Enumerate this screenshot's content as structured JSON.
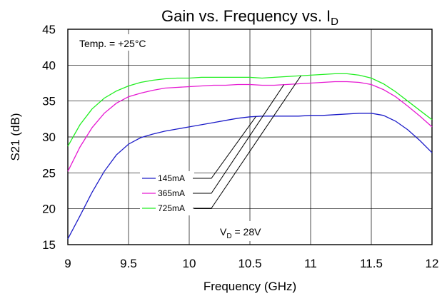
{
  "chart_data": {
    "type": "line",
    "title_main": "Gain vs. Frequency vs. I",
    "title_sub": "D",
    "xlabel": "Frequency (GHz)",
    "ylabel": "S21 (dB)",
    "xlim": [
      9,
      12
    ],
    "ylim": [
      15,
      45
    ],
    "xticks": [
      "9",
      "9.5",
      "10",
      "10.5",
      "11",
      "11.5",
      "12"
    ],
    "yticks": [
      "15",
      "20",
      "25",
      "30",
      "35",
      "40",
      "45"
    ],
    "grid": true,
    "legend_position": "bottom-left",
    "annotations": {
      "temperature": "Temp. = +25°C",
      "vd_main": "V",
      "vd_sub": "D",
      "vd_value": " = 28V"
    },
    "series": [
      {
        "name": "145mA",
        "color": "#1c1cc8",
        "x": [
          9.0,
          9.1,
          9.2,
          9.3,
          9.4,
          9.5,
          9.6,
          9.7,
          9.8,
          9.9,
          10.0,
          10.1,
          10.2,
          10.3,
          10.4,
          10.5,
          10.6,
          10.7,
          10.8,
          10.9,
          11.0,
          11.1,
          11.2,
          11.3,
          11.4,
          11.5,
          11.6,
          11.7,
          11.8,
          11.9,
          12.0
        ],
        "values": [
          15.8,
          19.0,
          22.3,
          25.2,
          27.5,
          29.0,
          29.9,
          30.4,
          30.8,
          31.1,
          31.4,
          31.7,
          32.0,
          32.3,
          32.6,
          32.8,
          32.9,
          32.9,
          32.9,
          32.9,
          33.0,
          33.0,
          33.1,
          33.2,
          33.3,
          33.3,
          33.0,
          32.2,
          31.0,
          29.5,
          27.8
        ]
      },
      {
        "name": "365mA",
        "color": "#e619d2",
        "x": [
          9.0,
          9.1,
          9.2,
          9.3,
          9.4,
          9.5,
          9.6,
          9.7,
          9.8,
          9.9,
          10.0,
          10.1,
          10.2,
          10.3,
          10.4,
          10.5,
          10.6,
          10.7,
          10.8,
          10.9,
          11.0,
          11.1,
          11.2,
          11.3,
          11.4,
          11.5,
          11.6,
          11.7,
          11.8,
          11.9,
          12.0
        ],
        "values": [
          25.2,
          28.6,
          31.3,
          33.3,
          34.7,
          35.6,
          36.1,
          36.5,
          36.8,
          36.9,
          37.0,
          37.1,
          37.2,
          37.2,
          37.3,
          37.3,
          37.2,
          37.2,
          37.3,
          37.4,
          37.5,
          37.6,
          37.7,
          37.7,
          37.6,
          37.3,
          36.6,
          35.6,
          34.3,
          32.9,
          31.4
        ]
      },
      {
        "name": "725mA",
        "color": "#22ee22",
        "x": [
          9.0,
          9.1,
          9.2,
          9.3,
          9.4,
          9.5,
          9.6,
          9.7,
          9.8,
          9.9,
          10.0,
          10.1,
          10.2,
          10.3,
          10.4,
          10.5,
          10.6,
          10.7,
          10.8,
          10.9,
          11.0,
          11.1,
          11.2,
          11.3,
          11.4,
          11.5,
          11.6,
          11.7,
          11.8,
          11.9,
          12.0
        ],
        "values": [
          28.7,
          31.7,
          33.9,
          35.4,
          36.4,
          37.1,
          37.6,
          37.9,
          38.1,
          38.2,
          38.2,
          38.3,
          38.3,
          38.3,
          38.3,
          38.3,
          38.2,
          38.3,
          38.4,
          38.5,
          38.6,
          38.7,
          38.8,
          38.8,
          38.6,
          38.2,
          37.4,
          36.3,
          35.0,
          33.7,
          32.4
        ]
      }
    ]
  }
}
